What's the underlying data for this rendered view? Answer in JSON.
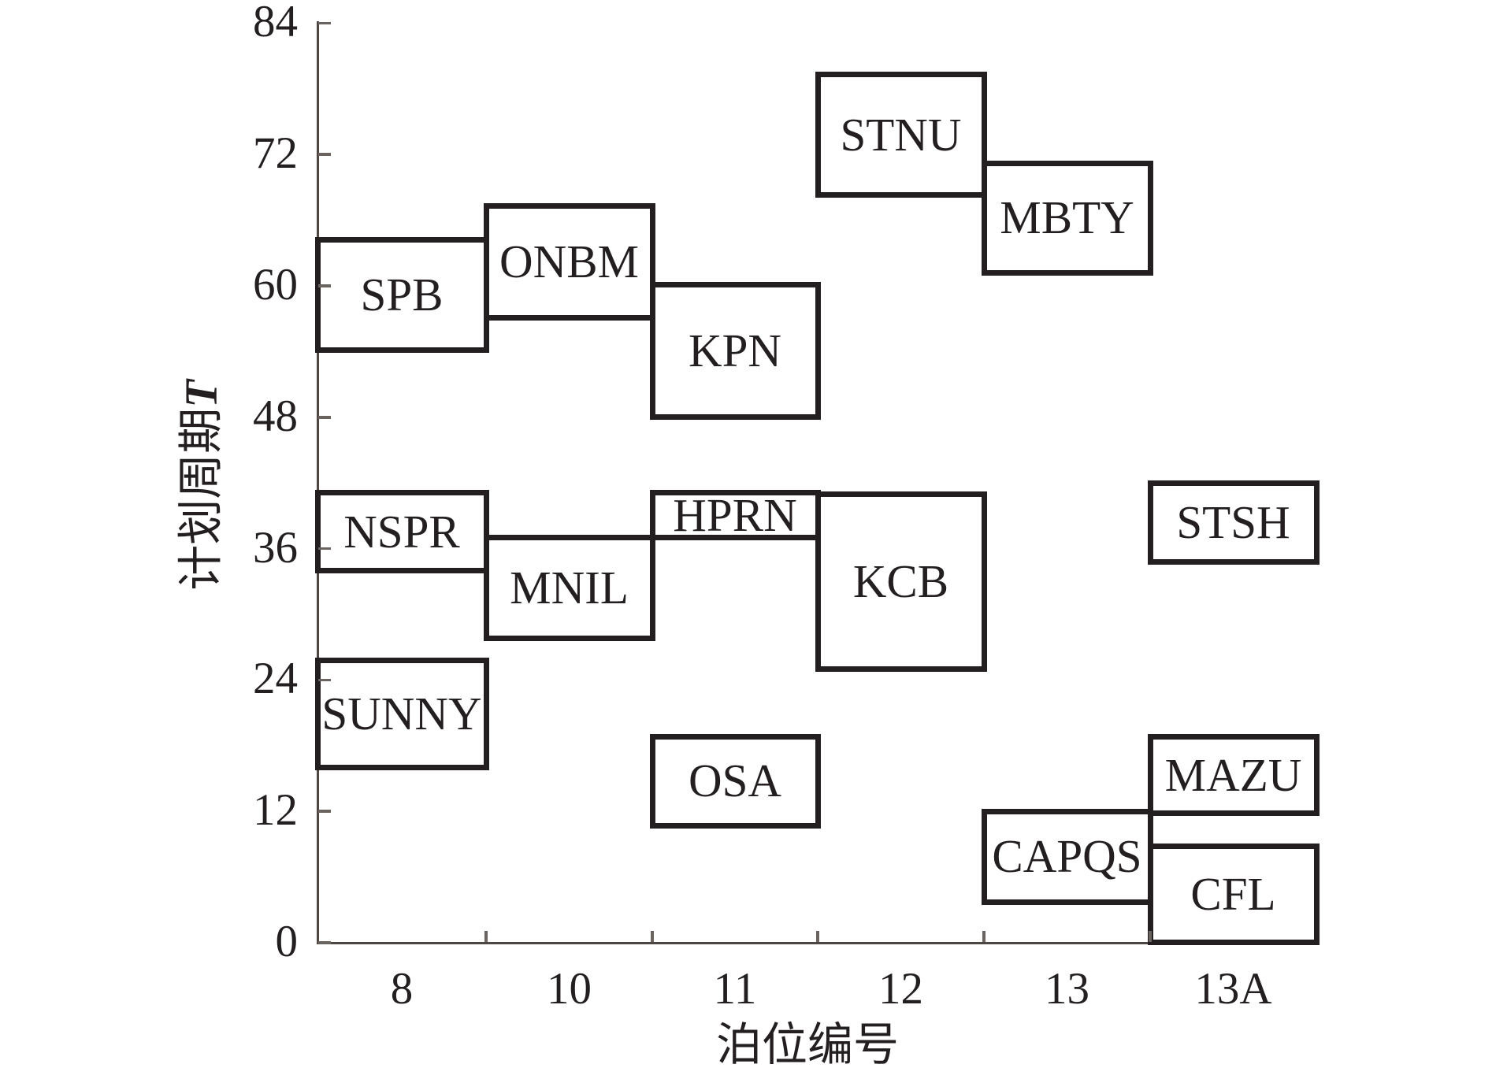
{
  "chart_data": {
    "type": "gantt-boxes",
    "description": "Berth allocation plan: ship boxes placed by berth (x, categorical) and planning period T (y)",
    "xlabel": "泊位编号",
    "ylabel": {
      "text": "计划周期",
      "var": "T"
    },
    "x_categories": [
      "8",
      "10",
      "11",
      "12",
      "13",
      "13A"
    ],
    "y_ticks": [
      0,
      12,
      24,
      36,
      48,
      60,
      72,
      84
    ],
    "ylim": [
      0,
      84
    ],
    "grid": false,
    "legend": "none",
    "boxes": [
      {
        "label": "SPB",
        "berth": "8",
        "t_start": 54.1,
        "t_end": 64.2
      },
      {
        "label": "ONBM",
        "berth": "10",
        "t_start": 57.1,
        "t_end": 67.3
      },
      {
        "label": "KPN",
        "berth": "11",
        "t_start": 48.0,
        "t_end": 60.1
      },
      {
        "label": "STNU",
        "berth": "12",
        "t_start": 68.3,
        "t_end": 79.3
      },
      {
        "label": "MBTY",
        "berth": "13",
        "t_start": 61.2,
        "t_end": 71.2
      },
      {
        "label": "NSPR",
        "berth": "8",
        "t_start": 34.0,
        "t_end": 41.1
      },
      {
        "label": "MNIL",
        "berth": "10",
        "t_start": 27.8,
        "t_end": 37.0
      },
      {
        "label": "HPRN",
        "berth": "11",
        "t_start": 37.0,
        "t_end": 41.1
      },
      {
        "label": "KCB",
        "berth": "12",
        "t_start": 25.0,
        "t_end": 41.0
      },
      {
        "label": "STSH",
        "berth": "13A",
        "t_start": 34.8,
        "t_end": 42.0
      },
      {
        "label": "SUNNY",
        "berth": "8",
        "t_start": 16.0,
        "t_end": 25.8
      },
      {
        "label": "OSA",
        "berth": "11",
        "t_start": 10.7,
        "t_end": 18.8
      },
      {
        "label": "CAPQS",
        "berth": "13",
        "t_start": 3.7,
        "t_end": 12.0
      },
      {
        "label": "MAZU",
        "berth": "13A",
        "t_start": 11.8,
        "t_end": 18.8
      },
      {
        "label": "CFL",
        "berth": "13A",
        "t_start": 0.0,
        "t_end": 8.8
      }
    ],
    "colors": {
      "background": "#ffffff",
      "box_border": "#231f20",
      "box_fill": "#ffffff",
      "axis": "#4d4642",
      "tick": "#6b6360",
      "text": "#231f20"
    }
  }
}
